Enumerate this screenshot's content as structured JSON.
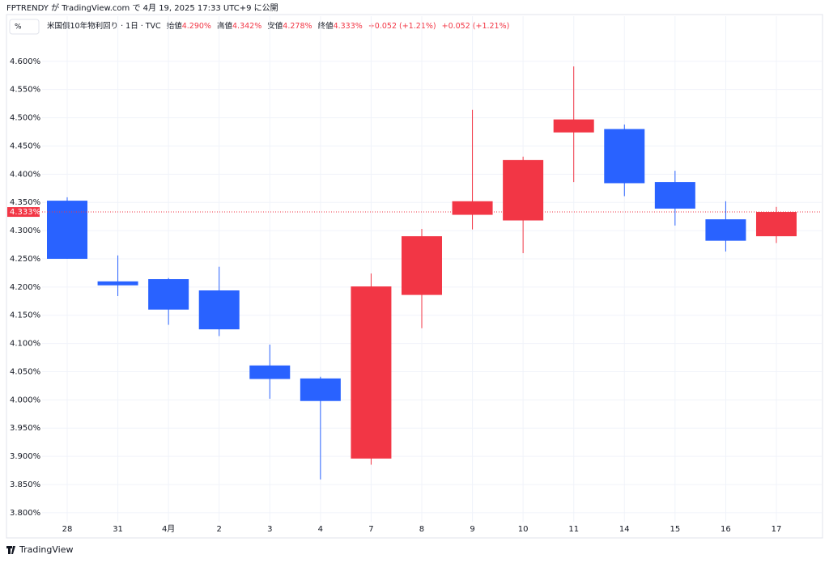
{
  "published": "FPTRENDY が TradingView.com で 4月 19, 2025 17:33 UTC+9 に公開",
  "unit_button": "%",
  "legend": {
    "symbol": "米国債10年物利回り · 1日 · TVC",
    "ohlc": [
      {
        "label": "始値",
        "value": "4.290%"
      },
      {
        "label": "高値",
        "value": "4.342%"
      },
      {
        "label": "安値",
        "value": "4.278%"
      },
      {
        "label": "終値",
        "value": "4.333%"
      }
    ],
    "change": [
      "+0.052 (+1.21%)",
      "+0.052 (+1.21%)"
    ]
  },
  "footer": "TradingView",
  "chart_data": {
    "type": "candlestick",
    "categories": [
      "28",
      "31",
      "4月",
      "2",
      "3",
      "4",
      "7",
      "8",
      "9",
      "10",
      "11",
      "14",
      "15",
      "16",
      "17"
    ],
    "open": [
      4.353,
      4.21,
      4.214,
      4.194,
      4.061,
      4.038,
      3.896,
      4.186,
      4.328,
      4.318,
      4.474,
      4.48,
      4.386,
      4.32,
      4.29
    ],
    "high": [
      4.359,
      4.256,
      4.216,
      4.236,
      4.098,
      4.041,
      4.224,
      4.303,
      4.514,
      4.431,
      4.591,
      4.488,
      4.406,
      4.352,
      4.342
    ],
    "low": [
      4.25,
      4.184,
      4.133,
      4.113,
      4.002,
      3.859,
      3.885,
      4.127,
      4.302,
      4.26,
      4.386,
      4.361,
      4.309,
      4.263,
      4.278
    ],
    "close": [
      4.25,
      4.203,
      4.16,
      4.125,
      4.037,
      3.998,
      4.201,
      4.29,
      4.352,
      4.425,
      4.497,
      4.384,
      4.339,
      4.282,
      4.333
    ],
    "up_color": "#f23645",
    "down_color": "#2962ff",
    "ylim": [
      3.784,
      4.637
    ],
    "yticks": [
      {
        "value": 3.8,
        "label": "3.800%"
      },
      {
        "value": 3.85,
        "label": "3.850%"
      },
      {
        "value": 3.9,
        "label": "3.900%"
      },
      {
        "value": 3.95,
        "label": "3.950%"
      },
      {
        "value": 4.0,
        "label": "4.000%"
      },
      {
        "value": 4.05,
        "label": "4.050%"
      },
      {
        "value": 4.1,
        "label": "4.100%"
      },
      {
        "value": 4.15,
        "label": "4.150%"
      },
      {
        "value": 4.2,
        "label": "4.200%"
      },
      {
        "value": 4.25,
        "label": "4.250%"
      },
      {
        "value": 4.3,
        "label": "4.300%"
      },
      {
        "value": 4.35,
        "label": "4.350%"
      },
      {
        "value": 4.4,
        "label": "4.400%"
      },
      {
        "value": 4.45,
        "label": "4.450%"
      },
      {
        "value": 4.5,
        "label": "4.500%"
      },
      {
        "value": 4.55,
        "label": "4.550%"
      },
      {
        "value": 4.6,
        "label": "4.600%"
      }
    ],
    "last_price": {
      "value": 4.333,
      "label": "4.333%"
    },
    "grid": true
  }
}
